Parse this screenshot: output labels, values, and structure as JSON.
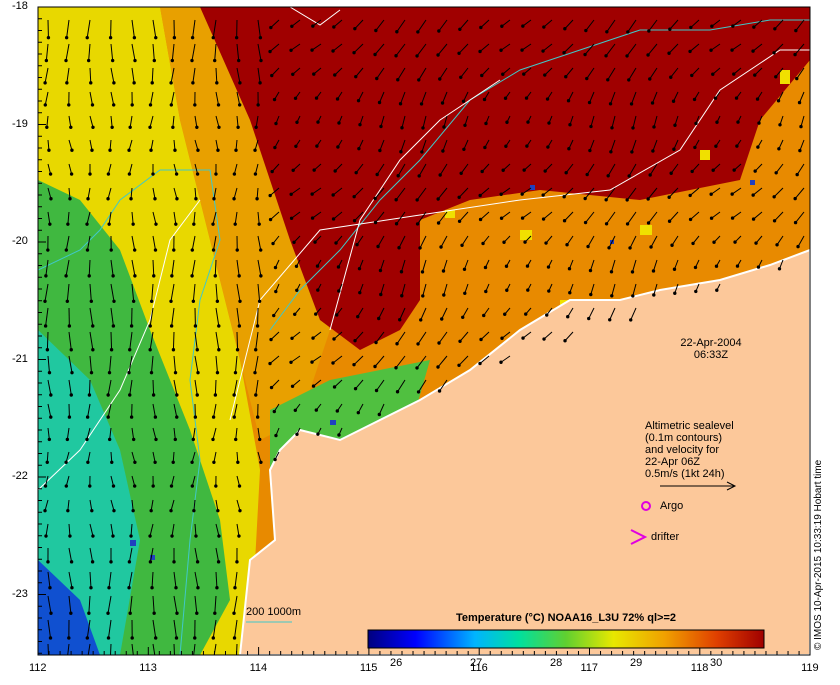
{
  "map": {
    "x_ticks": [
      "112",
      "113",
      "114",
      "115",
      "116",
      "117",
      "118",
      "119"
    ],
    "y_ticks": [
      "-18",
      "-19",
      "-20",
      "-21",
      "-22",
      "-23"
    ],
    "date_line": "22-Apr-2004",
    "time_line": "06:33Z",
    "legend_lines": [
      "Altimetric sealevel",
      "(0.1m contours)",
      "and velocity for",
      "22-Apr 06Z",
      "0.5m/s (1kt 24h)"
    ],
    "argo_label": "Argo",
    "drifter_label": "drifter",
    "bathy_label": "200  1000m",
    "colorbar_title": "Temperature (°C) NOAA16_L3U 72% ql>=2",
    "colorbar_ticks": [
      "26",
      "27",
      "28",
      "29",
      "30"
    ],
    "credit": "© IMOS 10-Apr-2015 10:33:19 Hobart time"
  },
  "colors": {
    "land": "#fcc89a",
    "hot": "#a00000",
    "argo": "#e000e0",
    "bathy": "#40c8c8"
  }
}
